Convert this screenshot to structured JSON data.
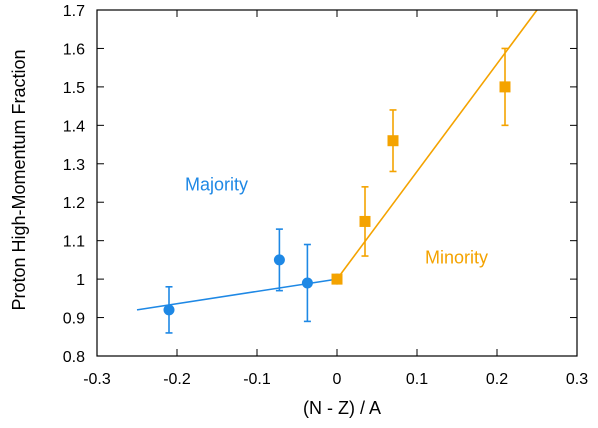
{
  "chart_data": {
    "type": "scatter",
    "xlabel": "(N - Z) / A",
    "ylabel": "Proton High-Momentum Fraction",
    "xlim": [
      -0.3,
      0.3
    ],
    "ylim": [
      0.8,
      1.7
    ],
    "xticks": [
      -0.3,
      -0.2,
      -0.1,
      0,
      0.1,
      0.2,
      0.3
    ],
    "yticks": [
      0.8,
      0.9,
      1,
      1.1,
      1.2,
      1.3,
      1.4,
      1.5,
      1.6,
      1.7
    ],
    "xtick_labels": [
      "-0.3",
      "-0.2",
      "-0.1",
      "0",
      "0.1",
      "0.2",
      "0.3"
    ],
    "ytick_labels": [
      "0.8",
      "0.9",
      "1",
      "1.1",
      "1.2",
      "1.3",
      "1.4",
      "1.5",
      "1.6",
      "1.7"
    ],
    "grid": false,
    "series": [
      {
        "marker": "circle",
        "color": "#1e88e5",
        "points": [
          {
            "x": -0.21,
            "y": 0.92,
            "yerr_low": 0.86,
            "yerr_high": 0.98
          },
          {
            "x": -0.072,
            "y": 1.05,
            "yerr_low": 0.97,
            "yerr_high": 1.13
          },
          {
            "x": -0.037,
            "y": 0.99,
            "yerr_low": 0.89,
            "yerr_high": 1.09
          },
          {
            "x": 0.0,
            "y": 1.0,
            "yerr_low": 0.99,
            "yerr_high": 1.01
          }
        ],
        "fit_line": {
          "x": [
            -0.25,
            0.0
          ],
          "y": [
            0.92,
            1.0
          ]
        }
      },
      {
        "marker": "square",
        "color": "#f4a300",
        "points": [
          {
            "x": 0.0,
            "y": 1.0,
            "yerr_low": 0.99,
            "yerr_high": 1.01
          },
          {
            "x": 0.035,
            "y": 1.15,
            "yerr_low": 1.06,
            "yerr_high": 1.24
          },
          {
            "x": 0.07,
            "y": 1.36,
            "yerr_low": 1.28,
            "yerr_high": 1.44
          },
          {
            "x": 0.21,
            "y": 1.5,
            "yerr_low": 1.4,
            "yerr_high": 1.6
          }
        ],
        "fit_line": {
          "x": [
            0.0,
            0.25
          ],
          "y": [
            1.0,
            1.7
          ]
        }
      }
    ],
    "annotations": [
      {
        "text": "Majority",
        "x": -0.19,
        "y": 1.23,
        "color": "#1e88e5"
      },
      {
        "text": "Minority",
        "x": 0.11,
        "y": 1.04,
        "color": "#f4a300"
      }
    ]
  }
}
